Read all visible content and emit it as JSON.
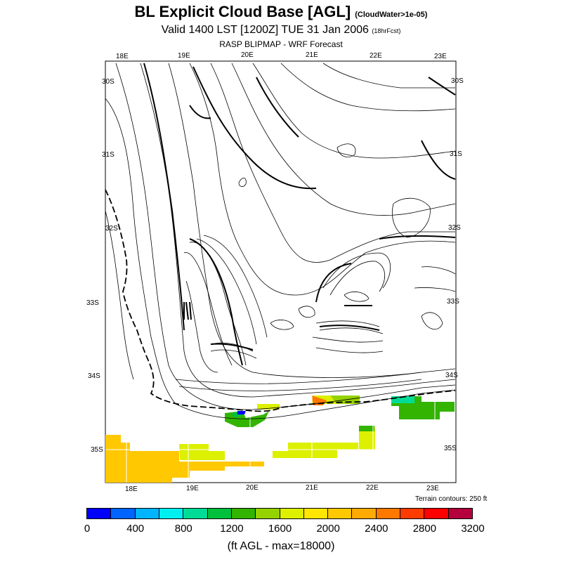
{
  "header": {
    "title": "BL Explicit Cloud Base [AGL]",
    "title_note": "(CloudWater>1e-05)",
    "subtitle": "Valid 1400 LST [1200Z] TUE 31 Jan 2006",
    "subtitle_note": "(18hrFcst)",
    "source": "RASP BLIPMAP - WRF Forecast"
  },
  "map": {
    "top_lon_labels": [
      "18E",
      "19E",
      "20E",
      "21E",
      "22E",
      "23E"
    ],
    "bottom_lon_labels": [
      "18E",
      "19E",
      "20E",
      "21E",
      "22E",
      "23E"
    ],
    "left_lat_labels": [
      "30S",
      "31S",
      "32S",
      "33S",
      "34S",
      "35S"
    ],
    "right_lat_labels": [
      "30S",
      "31S",
      "32S",
      "33S",
      "34S",
      "35S"
    ],
    "terrain_note": "Terrain contours: 250 ft"
  },
  "colorbar": {
    "colors": [
      "#0000ff",
      "#0064ff",
      "#00b4ff",
      "#00f0f0",
      "#00dc96",
      "#00c03c",
      "#32b400",
      "#96d200",
      "#dcf000",
      "#ffe600",
      "#ffc800",
      "#ffaa00",
      "#ff7800",
      "#ff3c00",
      "#ff0000",
      "#b4003c"
    ],
    "ticks": [
      "0",
      "400",
      "800",
      "1200",
      "1600",
      "2000",
      "2400",
      "2800",
      "3200"
    ],
    "units": "(ft AGL - max=18000)"
  }
}
